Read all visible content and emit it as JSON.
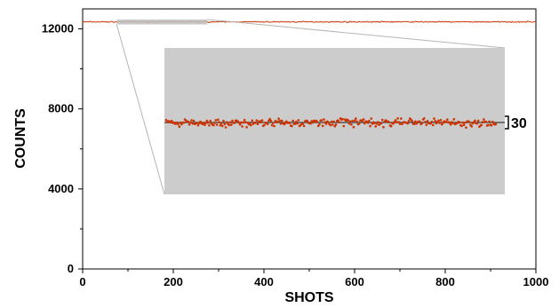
{
  "chart_data": {
    "type": "scatter",
    "title": "",
    "xlabel": "SHOTS",
    "ylabel": "COUNTS",
    "xlim": [
      0,
      1000
    ],
    "ylim": [
      0,
      13000
    ],
    "xticks": [
      0,
      200,
      400,
      600,
      800,
      1000
    ],
    "yticks": [
      0,
      4000,
      8000,
      12000
    ],
    "grid": false,
    "legend": "none",
    "main_series": {
      "shots": 1000,
      "mean_counts": 12350,
      "spread_counts": 30,
      "color": "#cc3300"
    },
    "zoom_inset": {
      "source_x_range": [
        75,
        275
      ],
      "source_y_range": [
        12220,
        12470
      ],
      "annotation": "30",
      "background": "#cccccc",
      "point_color": "#cc3300",
      "mean_line_color": "#555555"
    }
  }
}
